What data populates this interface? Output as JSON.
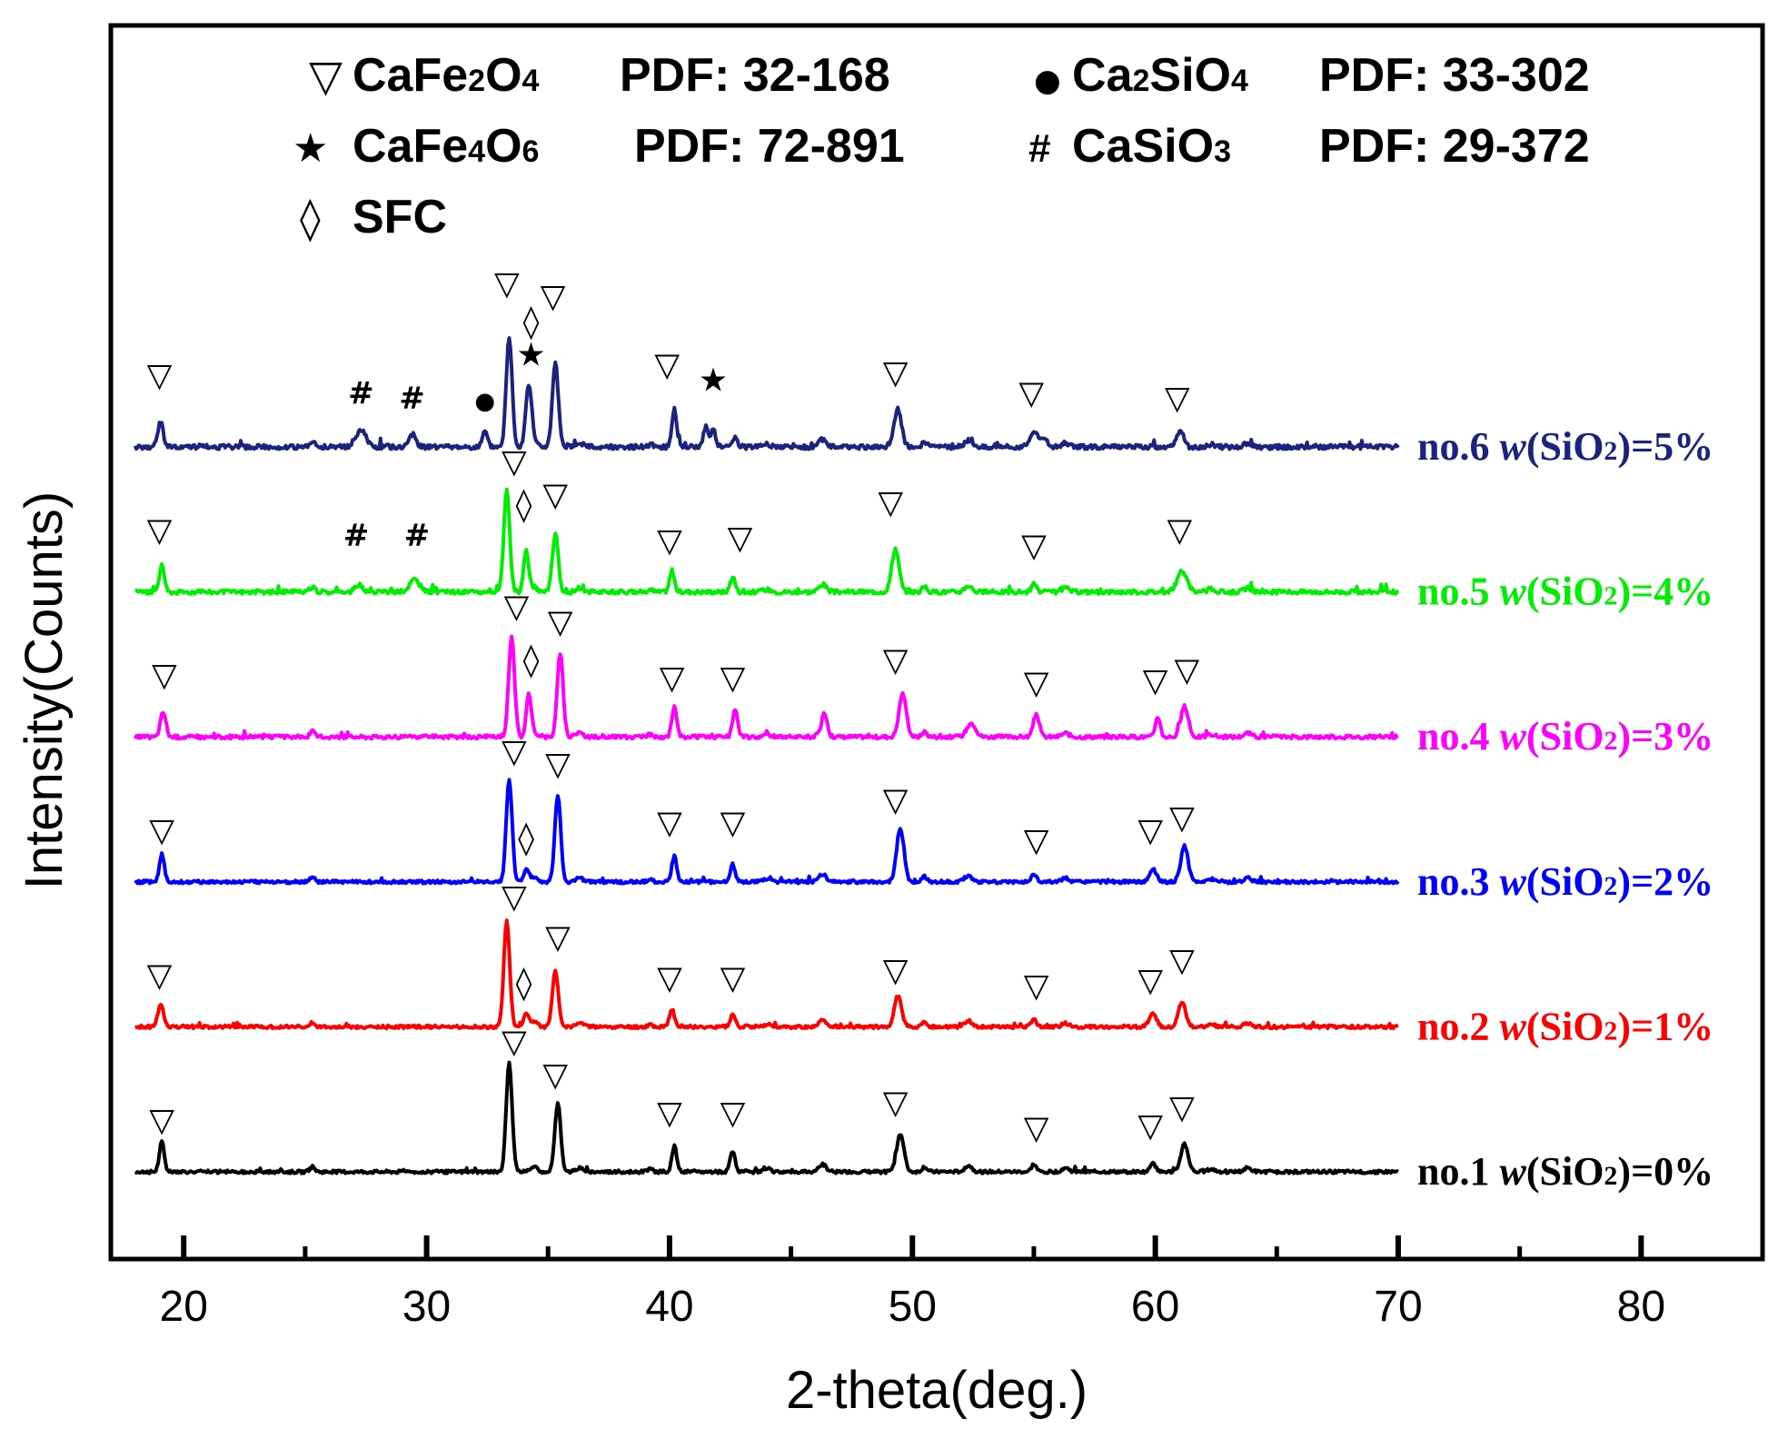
{
  "chart_data": {
    "type": "line",
    "title": "",
    "xlabel": "2-theta(deg.)",
    "ylabel": "Intensity(Counts)",
    "xlim": [
      17,
      85
    ],
    "x_ticks": [
      20,
      30,
      40,
      50,
      60,
      70,
      80
    ],
    "x_minor_ticks": [
      25,
      35,
      45,
      55,
      65,
      75
    ],
    "legend": {
      "placement": "top",
      "entries": [
        {
          "symbol": "▽",
          "phase": "CaFe",
          "sub1": "2",
          "mid": "O",
          "sub2": "4",
          "pdf": "PDF: 32-168"
        },
        {
          "symbol": "●",
          "phase": "Ca",
          "sub1": "2",
          "mid": "SiO",
          "sub2": "4",
          "pdf": "PDF: 33-302"
        },
        {
          "symbol": "★",
          "phase": "CaFe",
          "sub1": "4",
          "mid": "O",
          "sub2": "6",
          "pdf": "PDF: 72-891"
        },
        {
          "symbol": "#",
          "phase": "CaSiO",
          "sub1": "3",
          "mid": "",
          "sub2": "",
          "pdf": "PDF: 29-372"
        },
        {
          "symbol": "◊",
          "phase": "SFC",
          "sub1": "",
          "mid": "",
          "sub2": "",
          "pdf": ""
        }
      ]
    },
    "background_peaks": [
      [
        19.1,
        0.5,
        0.1
      ],
      [
        25.3,
        0.2,
        0.1
      ],
      [
        34.4,
        0.2,
        0.15
      ],
      [
        36.3,
        0.15,
        0.15
      ],
      [
        39.2,
        0.1,
        0.1
      ],
      [
        44.0,
        0.1,
        0.15
      ],
      [
        46.3,
        0.3,
        0.15
      ],
      [
        50.5,
        0.2,
        0.1
      ],
      [
        52.3,
        0.25,
        0.15
      ],
      [
        56.3,
        0.15,
        0.15
      ],
      [
        62.3,
        0.1,
        0.15
      ],
      [
        63.8,
        0.15,
        0.15
      ]
    ],
    "series": [
      {
        "name": "no.1",
        "label_prefix": "no.1 ",
        "label_var": "w",
        "label_mid": "(SiO",
        "label_sub": "2",
        "label_end": ")=0%",
        "color": "#000000",
        "baseline": 0,
        "noise": 0.06,
        "peaks": [
          [
            19.1,
            0.7,
            0.1
          ],
          [
            33.4,
            4.3,
            0.12
          ],
          [
            35.4,
            2.7,
            0.12
          ],
          [
            40.2,
            1.0,
            0.1
          ],
          [
            42.6,
            0.8,
            0.1
          ],
          [
            49.5,
            1.5,
            0.15
          ],
          [
            55.0,
            0.3,
            0.1
          ],
          [
            59.9,
            0.4,
            0.1
          ],
          [
            61.2,
            1.1,
            0.15
          ]
        ],
        "markers": [
          {
            "x": 19.1,
            "symbol": "▽",
            "h": 1.6
          },
          {
            "x": 33.6,
            "symbol": "▽",
            "h": 4.7
          },
          {
            "x": 35.3,
            "symbol": "▽",
            "h": 3.4
          },
          {
            "x": 40.0,
            "symbol": "▽",
            "h": 1.9
          },
          {
            "x": 42.6,
            "symbol": "▽",
            "h": 1.9
          },
          {
            "x": 49.3,
            "symbol": "▽",
            "h": 2.3
          },
          {
            "x": 55.1,
            "symbol": "▽",
            "h": 1.3
          },
          {
            "x": 59.8,
            "symbol": "▽",
            "h": 1.4
          },
          {
            "x": 61.1,
            "symbol": "▽",
            "h": 2.1
          }
        ]
      },
      {
        "name": "no.2",
        "label_prefix": "no.2 ",
        "label_var": "w",
        "label_mid": "(SiO",
        "label_sub": "2",
        "label_end": ")=1%",
        "color": "#ff0000",
        "baseline": 5.7,
        "noise": 0.06,
        "peaks": [
          [
            19.0,
            0.5,
            0.1
          ],
          [
            33.3,
            4.2,
            0.12
          ],
          [
            34.1,
            0.5,
            0.1
          ],
          [
            35.3,
            2.2,
            0.12
          ],
          [
            40.1,
            0.7,
            0.1
          ],
          [
            42.6,
            0.5,
            0.1
          ],
          [
            49.4,
            1.2,
            0.15
          ],
          [
            55.0,
            0.3,
            0.1
          ],
          [
            59.9,
            0.5,
            0.15
          ],
          [
            61.1,
            1.0,
            0.15
          ]
        ],
        "markers": [
          {
            "x": 19.0,
            "symbol": "▽",
            "h": 1.6
          },
          {
            "x": 33.6,
            "symbol": "▽",
            "h": 4.7
          },
          {
            "x": 34.0,
            "symbol": "◊",
            "h": 1.3
          },
          {
            "x": 35.4,
            "symbol": "▽",
            "h": 3.1
          },
          {
            "x": 40.0,
            "symbol": "▽",
            "h": 1.5
          },
          {
            "x": 42.6,
            "symbol": "▽",
            "h": 1.5
          },
          {
            "x": 49.3,
            "symbol": "▽",
            "h": 1.8
          },
          {
            "x": 55.1,
            "symbol": "▽",
            "h": 1.2
          },
          {
            "x": 59.8,
            "symbol": "▽",
            "h": 1.4
          },
          {
            "x": 61.1,
            "symbol": "▽",
            "h": 2.2
          }
        ]
      },
      {
        "name": "no.3",
        "label_prefix": "no.3 ",
        "label_var": "w",
        "label_mid": "(SiO",
        "label_sub": "2",
        "label_end": ")=2%",
        "color": "#0000ff",
        "baseline": 11.4,
        "noise": 0.06,
        "peaks": [
          [
            19.1,
            0.6,
            0.1
          ],
          [
            33.4,
            4.0,
            0.12
          ],
          [
            34.1,
            0.5,
            0.1
          ],
          [
            35.4,
            3.4,
            0.12
          ],
          [
            40.2,
            1.0,
            0.1
          ],
          [
            42.6,
            0.7,
            0.1
          ],
          [
            49.5,
            2.1,
            0.15
          ],
          [
            55.0,
            0.3,
            0.1
          ],
          [
            59.9,
            0.5,
            0.15
          ],
          [
            61.2,
            1.4,
            0.15
          ]
        ],
        "markers": [
          {
            "x": 19.1,
            "symbol": "▽",
            "h": 1.6
          },
          {
            "x": 33.6,
            "symbol": "▽",
            "h": 4.7
          },
          {
            "x": 34.1,
            "symbol": "◊",
            "h": 1.3
          },
          {
            "x": 35.4,
            "symbol": "▽",
            "h": 4.2
          },
          {
            "x": 40.0,
            "symbol": "▽",
            "h": 1.9
          },
          {
            "x": 42.6,
            "symbol": "▽",
            "h": 1.9
          },
          {
            "x": 49.3,
            "symbol": "▽",
            "h": 2.8
          },
          {
            "x": 55.1,
            "symbol": "▽",
            "h": 1.2
          },
          {
            "x": 59.8,
            "symbol": "▽",
            "h": 1.6
          },
          {
            "x": 61.1,
            "symbol": "▽",
            "h": 2.1
          }
        ]
      },
      {
        "name": "no.4",
        "label_prefix": "no.4 ",
        "label_var": "w",
        "label_mid": "(SiO",
        "label_sub": "2",
        "label_end": ")=3%",
        "color": "#ff00ff",
        "baseline": 17.1,
        "noise": 0.07,
        "peaks": [
          [
            19.2,
            0.6,
            0.1
          ],
          [
            33.5,
            4.0,
            0.12
          ],
          [
            34.2,
            1.6,
            0.1
          ],
          [
            35.5,
            3.3,
            0.12
          ],
          [
            40.2,
            1.2,
            0.1
          ],
          [
            42.7,
            1.1,
            0.1
          ],
          [
            46.4,
            0.7,
            0.1
          ],
          [
            49.6,
            1.7,
            0.15
          ],
          [
            52.5,
            0.4,
            0.15
          ],
          [
            55.1,
            0.9,
            0.12
          ],
          [
            60.1,
            0.8,
            0.1
          ],
          [
            61.2,
            1.2,
            0.15
          ]
        ],
        "markers": [
          {
            "x": 19.2,
            "symbol": "▽",
            "h": 2.0
          },
          {
            "x": 33.7,
            "symbol": "▽",
            "h": 4.7
          },
          {
            "x": 34.3,
            "symbol": "◊",
            "h": 2.6
          },
          {
            "x": 35.5,
            "symbol": "▽",
            "h": 4.1
          },
          {
            "x": 40.1,
            "symbol": "▽",
            "h": 1.9
          },
          {
            "x": 42.6,
            "symbol": "▽",
            "h": 1.9
          },
          {
            "x": 49.3,
            "symbol": "▽",
            "h": 2.6
          },
          {
            "x": 55.1,
            "symbol": "▽",
            "h": 1.7
          },
          {
            "x": 60.0,
            "symbol": "▽",
            "h": 1.8
          },
          {
            "x": 61.3,
            "symbol": "▽",
            "h": 2.2
          }
        ]
      },
      {
        "name": "no.5",
        "label_prefix": "no.5 ",
        "label_var": "w",
        "label_mid": "(SiO",
        "label_sub": "2",
        "label_end": ")=4%",
        "color": "#00ee00",
        "baseline": 22.8,
        "noise": 0.08,
        "peaks": [
          [
            19.1,
            0.6,
            0.1
          ],
          [
            27.2,
            0.3,
            0.15
          ],
          [
            29.5,
            0.5,
            0.2
          ],
          [
            33.3,
            4.0,
            0.12
          ],
          [
            34.1,
            1.6,
            0.1
          ],
          [
            35.3,
            2.3,
            0.12
          ],
          [
            40.1,
            0.8,
            0.1
          ],
          [
            42.6,
            0.6,
            0.1
          ],
          [
            49.3,
            1.7,
            0.15
          ],
          [
            55.0,
            0.3,
            0.1
          ],
          [
            61.1,
            0.8,
            0.2
          ]
        ],
        "markers": [
          {
            "x": 19.0,
            "symbol": "▽",
            "h": 2.0
          },
          {
            "x": 27.1,
            "symbol": "#",
            "h": 1.8
          },
          {
            "x": 29.6,
            "symbol": "#",
            "h": 1.8
          },
          {
            "x": 33.6,
            "symbol": "▽",
            "h": 4.7
          },
          {
            "x": 34.0,
            "symbol": "◊",
            "h": 3.0
          },
          {
            "x": 35.3,
            "symbol": "▽",
            "h": 3.4
          },
          {
            "x": 40.0,
            "symbol": "▽",
            "h": 1.6
          },
          {
            "x": 42.9,
            "symbol": "▽",
            "h": 1.7
          },
          {
            "x": 49.1,
            "symbol": "▽",
            "h": 3.1
          },
          {
            "x": 55.0,
            "symbol": "▽",
            "h": 1.4
          },
          {
            "x": 61.0,
            "symbol": "▽",
            "h": 2.0
          }
        ]
      },
      {
        "name": "no.6",
        "label_prefix": "no.6 ",
        "label_var": "w",
        "label_mid": "(SiO",
        "label_sub": "2",
        "label_end": ")=5%",
        "color": "#1a237e",
        "baseline": 28.5,
        "noise": 0.09,
        "peaks": [
          [
            19.0,
            0.6,
            0.1
          ],
          [
            27.3,
            0.7,
            0.2
          ],
          [
            29.4,
            0.5,
            0.15
          ],
          [
            32.4,
            0.6,
            0.1
          ],
          [
            33.4,
            4.3,
            0.12
          ],
          [
            34.2,
            2.4,
            0.12
          ],
          [
            35.3,
            3.3,
            0.12
          ],
          [
            40.2,
            1.5,
            0.1
          ],
          [
            41.5,
            0.8,
            0.1
          ],
          [
            41.8,
            0.7,
            0.1
          ],
          [
            42.7,
            0.4,
            0.1
          ],
          [
            49.4,
            1.5,
            0.15
          ],
          [
            55.0,
            0.6,
            0.15
          ],
          [
            55.4,
            0.4,
            0.15
          ],
          [
            61.0,
            0.6,
            0.15
          ]
        ],
        "markers": [
          {
            "x": 19.0,
            "symbol": "▽",
            "h": 2.4
          },
          {
            "x": 27.3,
            "symbol": "#",
            "h": 1.7
          },
          {
            "x": 29.4,
            "symbol": "#",
            "h": 1.5
          },
          {
            "x": 32.4,
            "symbol": "●",
            "h": 1.5
          },
          {
            "x": 33.3,
            "symbol": "▽",
            "h": 6.0
          },
          {
            "x": 34.3,
            "symbol": "★",
            "h": 3.2
          },
          {
            "x": 34.3,
            "symbol": "◊",
            "h": 4.5
          },
          {
            "x": 35.2,
            "symbol": "▽",
            "h": 5.5
          },
          {
            "x": 39.9,
            "symbol": "▽",
            "h": 2.8
          },
          {
            "x": 41.8,
            "symbol": "★",
            "h": 2.2
          },
          {
            "x": 49.3,
            "symbol": "▽",
            "h": 2.5
          },
          {
            "x": 54.9,
            "symbol": "▽",
            "h": 1.7
          },
          {
            "x": 60.9,
            "symbol": "▽",
            "h": 1.5
          }
        ]
      }
    ]
  }
}
